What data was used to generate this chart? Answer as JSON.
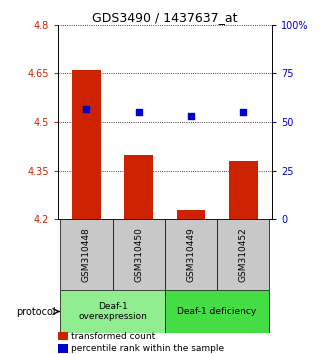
{
  "title": "GDS3490 / 1437637_at",
  "samples": [
    "GSM310448",
    "GSM310450",
    "GSM310449",
    "GSM310452"
  ],
  "bar_values": [
    4.66,
    4.4,
    4.23,
    4.38
  ],
  "bar_color": "#cc2200",
  "dot_values": [
    57,
    55,
    53,
    55
  ],
  "dot_color": "#0000cc",
  "ylim_left": [
    4.2,
    4.8
  ],
  "ylim_right": [
    0,
    100
  ],
  "yticks_left": [
    4.2,
    4.35,
    4.5,
    4.65,
    4.8
  ],
  "yticks_right": [
    0,
    25,
    50,
    75,
    100
  ],
  "ytick_labels_left": [
    "4.2",
    "4.35",
    "4.5",
    "4.65",
    "4.8"
  ],
  "ytick_labels_right": [
    "0",
    "25",
    "50",
    "75",
    "100%"
  ],
  "groups": [
    {
      "label": "Deaf-1\noverexpression",
      "start": 0,
      "end": 2,
      "color": "#90ee90"
    },
    {
      "label": "Deaf-1 deficiency",
      "start": 2,
      "end": 4,
      "color": "#44dd44"
    }
  ],
  "protocol_label": "protocol",
  "legend_items": [
    {
      "color": "#cc2200",
      "label": "transformed count"
    },
    {
      "color": "#0000cc",
      "label": "percentile rank within the sample"
    }
  ],
  "bg_color": "#ffffff",
  "sample_bg_color": "#c8c8c8",
  "bar_bottom": 4.2,
  "bar_width": 0.55,
  "dot_size": 22
}
